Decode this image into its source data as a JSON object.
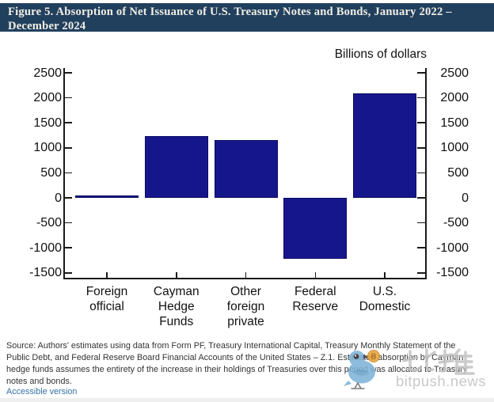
{
  "header": {
    "title": "Figure 5. Absorption of Net Issuance of U.S. Treasury Notes and Bonds, January 2022 – December 2024"
  },
  "chart_data": {
    "type": "bar",
    "title": "Absorption of Net Issuance of U.S. Treasury Notes and Bonds, January 2022 – December 2024",
    "units_label": "Billions of dollars",
    "categories": [
      "Foreign\nofficial",
      "Cayman\nHedge\nFunds",
      "Other\nforeign\nprivate",
      "Federal\nReserve",
      "U.S.\nDomestic"
    ],
    "values": [
      50,
      1230,
      1160,
      -1220,
      2090
    ],
    "ylim": [
      -1500,
      2500
    ],
    "yticks": [
      -1500,
      -1000,
      -500,
      0,
      500,
      1000,
      1500,
      2000,
      2500
    ],
    "grid": false,
    "legend": "none",
    "bar_color": "#16168c",
    "axes": "dual-y"
  },
  "footer": {
    "source_lines": [
      "Source: Authors' estimates using data from Form PF, Treasury International Capital, Treasury Monthly Statement of the",
      "Public Debt, and Federal Reserve Board Financial Accounts of the United States – Z.1. Estimated absorption by Cayman",
      "hedge funds assumes the entirety of the increase in their holdings of Treasuries over this period was allocated to Treasury",
      "notes and bonds."
    ],
    "accessible_link": "Accessible version"
  },
  "watermark": {
    "cjk": "比推",
    "site": "bitpush.news"
  },
  "colors": {
    "header_bg": "#21405e",
    "header_text": "#f2eee4",
    "bar": "#16168c",
    "link": "#3471a7",
    "watermark_text": "#c9c9c9",
    "bird_blue": "#7fb3d8",
    "coin_orange": "#eaa33c"
  }
}
